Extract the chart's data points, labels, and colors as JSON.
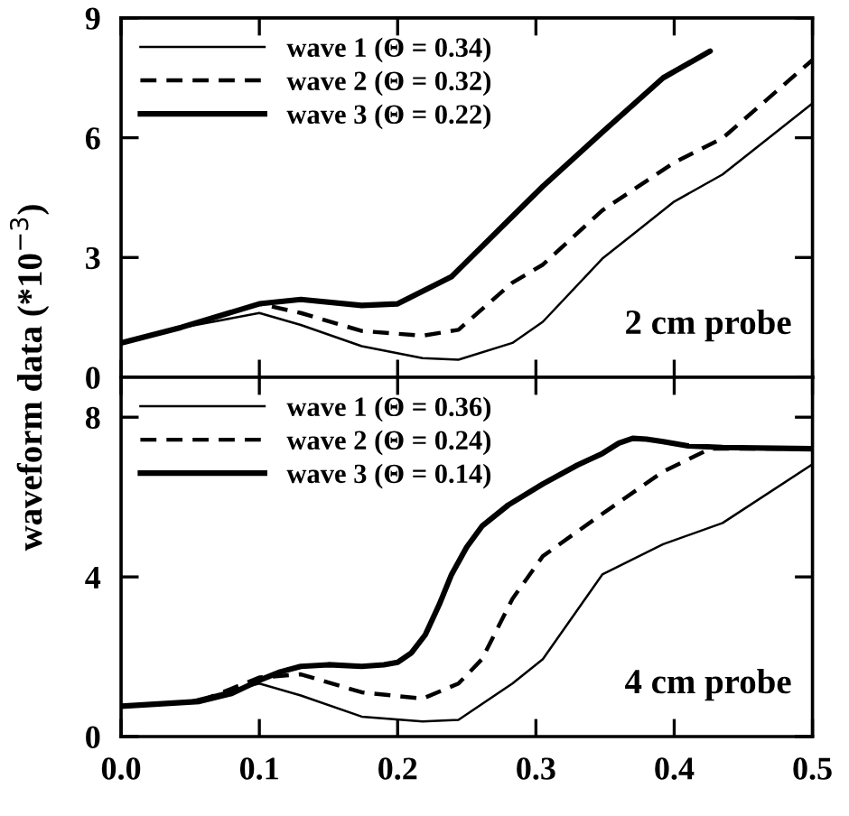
{
  "chart_data": [
    {
      "type": "line",
      "ylabel": "waveform data (*10$^{−3}$)",
      "annotations": [
        "2 cm probe"
      ],
      "legend": "top left",
      "tick_labels": "y",
      "xlim": [
        0,
        0.5
      ],
      "xticks": [
        {
          "value": 0,
          "label": null
        },
        0.1,
        0.2,
        0.3,
        0.4,
        0.5
      ],
      "ylim": [
        0,
        9
      ],
      "yticks": [
        0,
        3,
        6,
        9
      ],
      "grid": false,
      "series": [
        {
          "name": "wave 1 (Θ = 0.34)",
          "color": "#000000",
          "line_style": "solid",
          "x": [
            0,
            0.0435,
            0.1,
            0.13,
            0.174,
            0.218,
            0.244,
            0.283,
            0.305,
            0.348,
            0.4,
            0.435,
            0.5
          ],
          "values": [
            0.86,
            1.24,
            1.61,
            1.31,
            0.78,
            0.48,
            0.44,
            0.86,
            1.39,
            2.97,
            4.4,
            5.08,
            6.86
          ]
        },
        {
          "name": "wave 2 (Θ = 0.32)",
          "color": "#000000",
          "line_style": "dashed",
          "x": [
            0,
            0.0435,
            0.1,
            0.13,
            0.174,
            0.218,
            0.244,
            0.283,
            0.305,
            0.348,
            0.4,
            0.435,
            0.5
          ],
          "values": [
            0.86,
            1.25,
            1.84,
            1.61,
            1.16,
            1.04,
            1.19,
            2.37,
            2.82,
            4.18,
            5.38,
            5.99,
            7.95
          ]
        },
        {
          "name": "wave 3 (Θ = 0.22)",
          "color": "#000000",
          "line_style": "solid",
          "x": [
            0,
            0.0435,
            0.1,
            0.13,
            0.174,
            0.2,
            0.239,
            0.283,
            0.305,
            0.348,
            0.392,
            0.426
          ],
          "values": [
            0.86,
            1.25,
            1.84,
            1.95,
            1.8,
            1.84,
            2.52,
            4.03,
            4.78,
            6.14,
            7.5,
            8.17
          ]
        }
      ]
    },
    {
      "type": "line",
      "annotations": [
        "4 cm probe"
      ],
      "legend": "top left",
      "xlim": [
        0,
        0.5
      ],
      "xticks": [
        {
          "value": 0,
          "label": "0.0"
        },
        0.1,
        0.2,
        0.3,
        0.4,
        0.5
      ],
      "ylim": [
        0,
        9
      ],
      "yticks": [
        0,
        4,
        8
      ],
      "grid": false,
      "series": [
        {
          "name": "wave 1 (Θ = 0.36)",
          "color": "#000000",
          "line_style": "solid",
          "x": [
            0,
            0.0435,
            0.1,
            0.13,
            0.174,
            0.218,
            0.244,
            0.283,
            0.305,
            0.348,
            0.392,
            0.435,
            0.5
          ],
          "values": [
            0.76,
            0.83,
            1.33,
            1.03,
            0.5,
            0.38,
            0.42,
            1.33,
            1.94,
            4.06,
            4.82,
            5.35,
            6.82
          ]
        },
        {
          "name": "wave 2 (Θ = 0.24)",
          "color": "#000000",
          "line_style": "dashed",
          "x": [
            0,
            0.0566,
            0.1,
            0.13,
            0.174,
            0.218,
            0.244,
            0.261,
            0.283,
            0.305,
            0.348,
            0.392,
            0.426,
            0.5
          ],
          "values": [
            0.76,
            0.88,
            1.48,
            1.56,
            1.11,
            0.95,
            1.33,
            1.94,
            3.45,
            4.52,
            5.58,
            6.64,
            7.21,
            7.21
          ]
        },
        {
          "name": "wave 3 (Θ = 0.14)",
          "color": "#000000",
          "line_style": "solid",
          "x": [
            0,
            0.0566,
            0.08,
            0.1,
            0.115,
            0.13,
            0.15,
            0.174,
            0.19,
            0.2,
            0.21,
            0.22,
            0.23,
            0.239,
            0.25,
            0.261,
            0.28,
            0.305,
            0.33,
            0.348,
            0.36,
            0.37,
            0.38,
            0.392,
            0.41,
            0.435,
            0.5
          ],
          "values": [
            0.76,
            0.88,
            1.08,
            1.41,
            1.62,
            1.76,
            1.8,
            1.76,
            1.8,
            1.86,
            2.1,
            2.55,
            3.3,
            4.06,
            4.75,
            5.27,
            5.8,
            6.33,
            6.8,
            7.09,
            7.35,
            7.47,
            7.45,
            7.39,
            7.28,
            7.24,
            7.21
          ]
        }
      ]
    }
  ]
}
